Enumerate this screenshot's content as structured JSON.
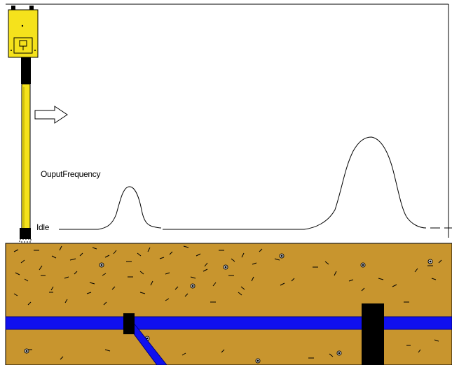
{
  "labels": {
    "output_frequency": "OuputFrequency",
    "idle": "Idle"
  },
  "colors": {
    "detector_body": "#f5e21c",
    "detector_outline": "#000000",
    "soil": "#c8952e",
    "pipe": "#1010ee",
    "pipe_outline": "#000080",
    "post": "#000000",
    "signal_line": "#000000",
    "frame": "#000000"
  },
  "icons": {
    "detector": "metal-detector-icon",
    "arrow": "sweep-arrow-icon"
  }
}
